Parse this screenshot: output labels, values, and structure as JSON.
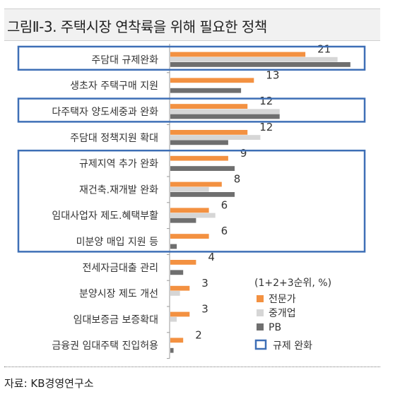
{
  "title": "그림Ⅱ-3. 주택시장 연착륙을 위해 필요한 정책",
  "source": "자료: KB경영연구소",
  "colors": {
    "expert": "#f39141",
    "agent": "#d6d6d6",
    "pb": "#6f6f6f",
    "highlight_border": "#3e6fb6"
  },
  "chart_data": {
    "type": "bar",
    "orientation": "horizontal",
    "categories": [
      "주담대 규제완화",
      "생초자 주택구매 지원",
      "다주택자 양도세중과 완화",
      "주담대 정책지원 확대",
      "규제지역 추가 완화",
      "재건축.재개발 완화",
      "임대사업자 제도.혜택부활",
      "미분양 매입 지원 등",
      "전세자금대출 관리",
      "분양시장 제도 개선",
      "임대보증금 보증확대",
      "금융권 임대주택 진입허용"
    ],
    "series": [
      {
        "name": "전문가",
        "values": [
          21,
          13,
          12,
          12,
          9,
          8,
          6,
          6,
          4,
          3,
          3,
          2
        ]
      },
      {
        "name": "중개업",
        "values": [
          26,
          0,
          17,
          14,
          0,
          6,
          7,
          0,
          0,
          1.5,
          1,
          0
        ]
      },
      {
        "name": "PB",
        "values": [
          28,
          11,
          17,
          9,
          10,
          10,
          4,
          1,
          2,
          0,
          0,
          0.5
        ]
      }
    ],
    "data_labels": [
      "21",
      "13",
      "12",
      "12",
      "9",
      "8",
      "6",
      "6",
      "4",
      "3",
      "3",
      "2"
    ],
    "legend": {
      "title": "(1+2+3순위, %)",
      "items": [
        "전문가",
        "중개업",
        "PB"
      ],
      "highlight_label": "규제 완화"
    },
    "highlight_groups": [
      [
        0
      ],
      [
        2
      ],
      [
        4,
        5,
        6,
        7
      ]
    ],
    "xlim": [
      0,
      30
    ]
  }
}
